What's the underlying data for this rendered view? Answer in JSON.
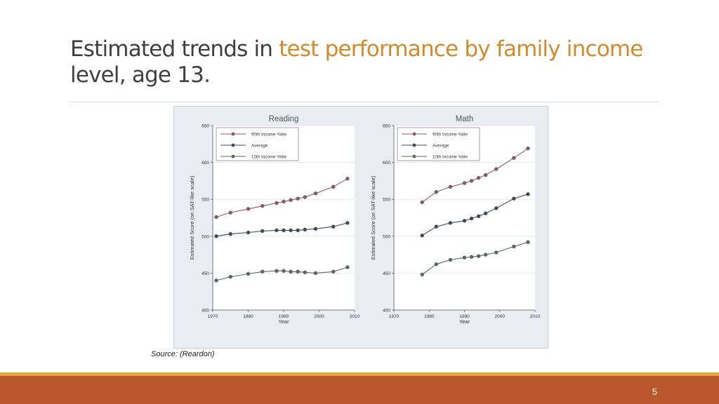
{
  "slide": {
    "title_part1": "Estimated trends in ",
    "title_accent": "test performance by family income",
    "title_part2": "level, age 13.",
    "source": "Source: (Reardon)",
    "page_number": "5",
    "accent_color": "#d4892b",
    "footer_color": "#b8562c",
    "footer_line_color": "#e6a53a"
  },
  "chart_data": [
    {
      "type": "line",
      "title": "Reading",
      "xlabel": "Year",
      "ylabel": "Estimated Score (on SAT-like scale)",
      "xlim": [
        1970,
        2010
      ],
      "ylim": [
        400,
        650
      ],
      "xticks": [
        1970,
        1980,
        1990,
        2000,
        2010
      ],
      "yticks": [
        400,
        450,
        500,
        550,
        600,
        650
      ],
      "grid": true,
      "legend": "top-left",
      "series": [
        {
          "name": "90th Income %tile",
          "color": "#8a5a68",
          "x": [
            1971,
            1975,
            1980,
            1984,
            1988,
            1990,
            1992,
            1994,
            1996,
            1999,
            2004,
            2008
          ],
          "y": [
            526,
            532,
            537,
            541,
            545,
            547,
            549,
            551,
            553,
            558,
            567,
            578
          ]
        },
        {
          "name": "Average",
          "color": "#3f4a5c",
          "x": [
            1971,
            1975,
            1980,
            1984,
            1988,
            1990,
            1992,
            1994,
            1996,
            1999,
            2004,
            2008
          ],
          "y": [
            500,
            503,
            505,
            507,
            508,
            508,
            508,
            508,
            509,
            510,
            513,
            518
          ]
        },
        {
          "name": "10th Income %tile",
          "color": "#5d6a5f",
          "x": [
            1971,
            1975,
            1980,
            1984,
            1988,
            1990,
            1992,
            1994,
            1996,
            1999,
            2004,
            2008
          ],
          "y": [
            440,
            445,
            449,
            452,
            453,
            453,
            452,
            452,
            451,
            450,
            452,
            458
          ]
        }
      ]
    },
    {
      "type": "line",
      "title": "Math",
      "xlabel": "Year",
      "ylabel": "Estimated Score (on SAT-like scale)",
      "xlim": [
        1970,
        2010
      ],
      "ylim": [
        400,
        650
      ],
      "xticks": [
        1970,
        1980,
        1990,
        2000,
        2010
      ],
      "yticks": [
        400,
        450,
        500,
        550,
        600,
        650
      ],
      "grid": true,
      "legend": "top-left",
      "series": [
        {
          "name": "90th Income %tile",
          "color": "#8a5a68",
          "x": [
            1978,
            1982,
            1986,
            1990,
            1992,
            1994,
            1996,
            1999,
            2004,
            2008
          ],
          "y": [
            546,
            560,
            567,
            572,
            575,
            579,
            583,
            591,
            606,
            619
          ]
        },
        {
          "name": "Average",
          "color": "#3f4a5c",
          "x": [
            1978,
            1982,
            1986,
            1990,
            1992,
            1994,
            1996,
            1999,
            2004,
            2008
          ],
          "y": [
            501,
            513,
            518,
            521,
            524,
            527,
            531,
            538,
            551,
            557
          ]
        },
        {
          "name": "10th Income %tile",
          "color": "#5d6a5f",
          "x": [
            1978,
            1982,
            1986,
            1990,
            1992,
            1994,
            1996,
            1999,
            2004,
            2008
          ],
          "y": [
            448,
            462,
            468,
            471,
            472,
            473,
            475,
            478,
            486,
            492
          ]
        }
      ]
    }
  ]
}
